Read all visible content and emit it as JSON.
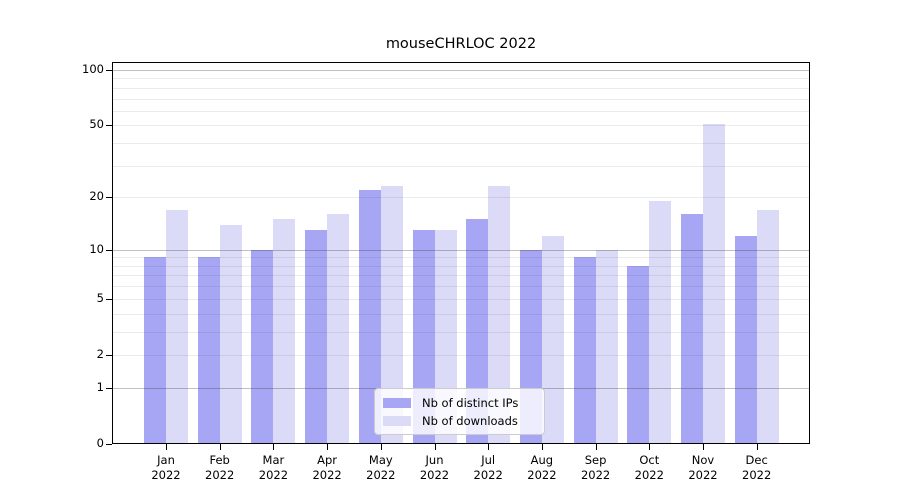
{
  "chart_data": {
    "type": "bar",
    "title": "mouseCHRLOC 2022",
    "categories": [
      "Jan",
      "Feb",
      "Mar",
      "Apr",
      "May",
      "Jun",
      "Jul",
      "Aug",
      "Sep",
      "Oct",
      "Nov",
      "Dec"
    ],
    "category_year": "2022",
    "series": [
      {
        "name": "Nb of distinct IPs",
        "color": "#a6a6f4",
        "values": [
          9,
          9,
          10,
          13,
          22,
          13,
          15,
          10,
          9,
          8,
          16,
          12
        ]
      },
      {
        "name": "Nb of downloads",
        "color": "#dbdbf8",
        "values": [
          17,
          14,
          15,
          16,
          23,
          13,
          23,
          12,
          10,
          19,
          51,
          17
        ]
      }
    ],
    "y_axis": {
      "scale": "log1p",
      "tick_labels": [
        100,
        50,
        20,
        10,
        5,
        2,
        1,
        0
      ],
      "ylim": [
        0,
        110
      ]
    },
    "grid": {
      "major": [
        1,
        10,
        100
      ],
      "minor": [
        2,
        3,
        4,
        5,
        6,
        7,
        8,
        9,
        20,
        30,
        40,
        50,
        60,
        70,
        80,
        90
      ]
    },
    "legend_position": "bottom-center-inside"
  }
}
